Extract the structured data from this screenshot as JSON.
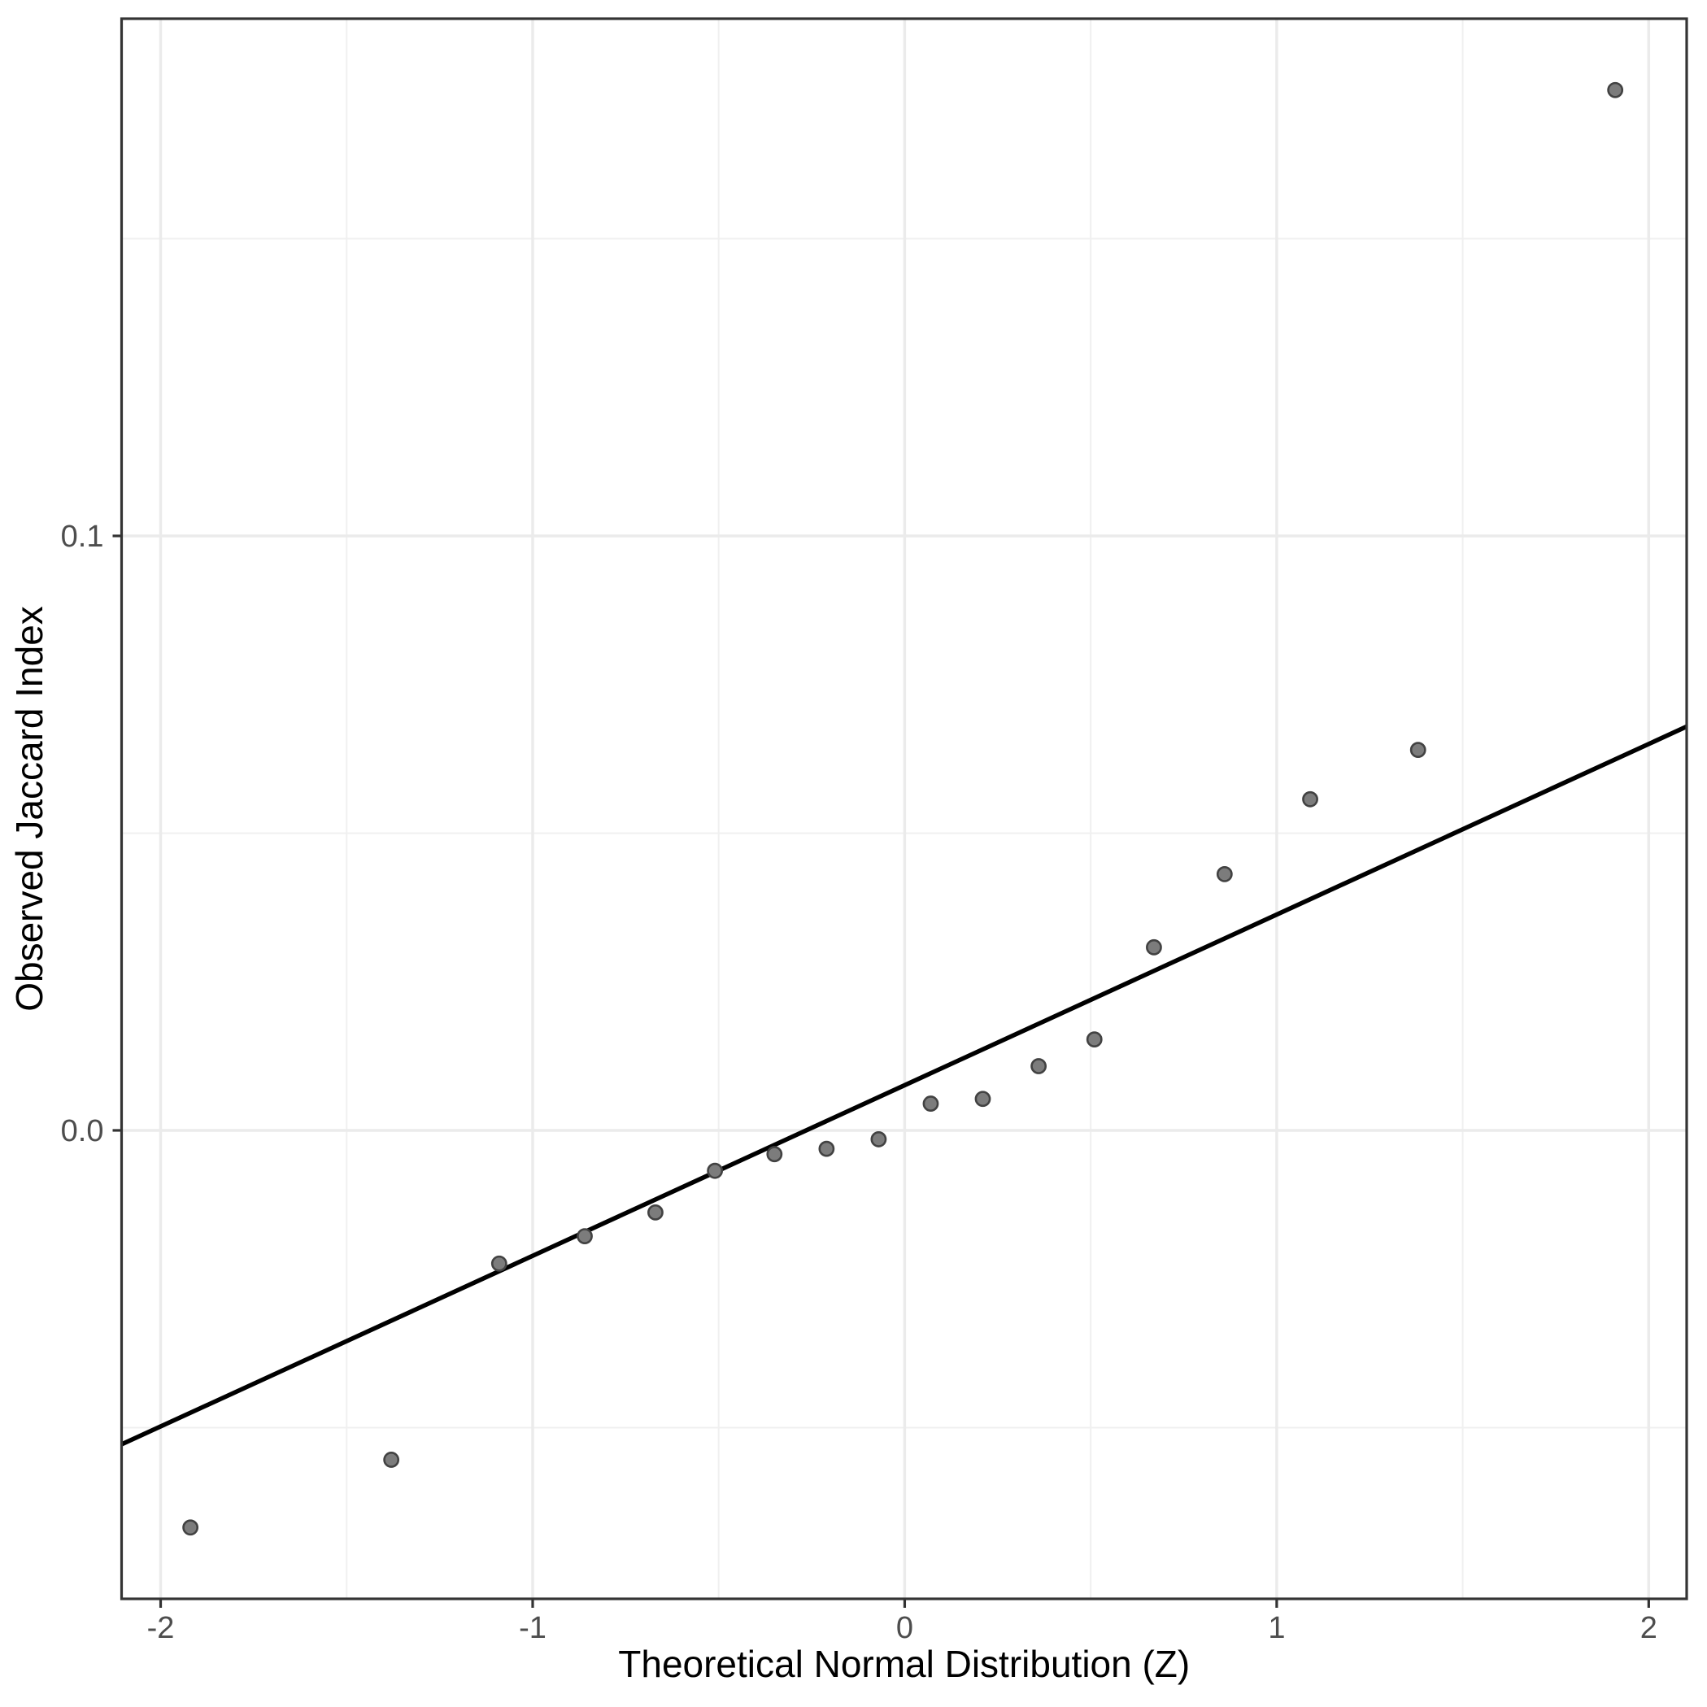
{
  "figure": {
    "kind": "qq-plot",
    "theme": "ggplot2-theme-bw"
  },
  "chart_data": {
    "type": "scatter",
    "title": "",
    "xlabel": "Theoretical Normal Distribution (Z)",
    "ylabel": "Observed Jaccard Index",
    "xlim": [
      -2.105,
      2.102
    ],
    "ylim": [
      -0.0788,
      0.187
    ],
    "x_ticks": [
      -2,
      -1,
      0,
      1,
      2
    ],
    "x_tick_labels": [
      "-2",
      "-1",
      "0",
      "1",
      "2"
    ],
    "y_ticks": [
      0.0,
      0.1
    ],
    "y_tick_labels": [
      "0.0",
      "0.1"
    ],
    "x_minor_ticks": [
      -1.5,
      -0.5,
      0.5,
      1.5
    ],
    "y_minor_ticks": [
      -0.05,
      0.05,
      0.15
    ],
    "grid": true,
    "legend": false,
    "points": [
      {
        "z": -1.92,
        "jaccard": -0.0668
      },
      {
        "z": -1.38,
        "jaccard": -0.0554
      },
      {
        "z": -1.09,
        "jaccard": -0.0224
      },
      {
        "z": -0.86,
        "jaccard": -0.0178
      },
      {
        "z": -0.67,
        "jaccard": -0.0138
      },
      {
        "z": -0.51,
        "jaccard": -0.0068
      },
      {
        "z": -0.35,
        "jaccard": -0.004
      },
      {
        "z": -0.21,
        "jaccard": -0.0031
      },
      {
        "z": -0.07,
        "jaccard": -0.0015
      },
      {
        "z": 0.07,
        "jaccard": 0.0045
      },
      {
        "z": 0.21,
        "jaccard": 0.0053
      },
      {
        "z": 0.36,
        "jaccard": 0.0108
      },
      {
        "z": 0.51,
        "jaccard": 0.0153
      },
      {
        "z": 0.67,
        "jaccard": 0.0308
      },
      {
        "z": 0.86,
        "jaccard": 0.0431
      },
      {
        "z": 1.09,
        "jaccard": 0.0557
      },
      {
        "z": 1.38,
        "jaccard": 0.064
      },
      {
        "z": 1.91,
        "jaccard": 0.175
      }
    ],
    "reference_line": {
      "slope": 0.0287,
      "intercept": 0.0076
    }
  },
  "style": {
    "background": "#FFFFFF",
    "panel_background": "#FFFFFF",
    "panel_border_color": "#343434",
    "grid_major_color": "#EBEBEB",
    "grid_minor_color": "#F0F0F0",
    "point_fill": "#7C7C7C",
    "point_stroke": "#424242",
    "reference_line_color": "#000000",
    "tick_mark_color": "#333333",
    "tick_label_color": "#4D4D4D",
    "axis_title_color": "#000000"
  }
}
